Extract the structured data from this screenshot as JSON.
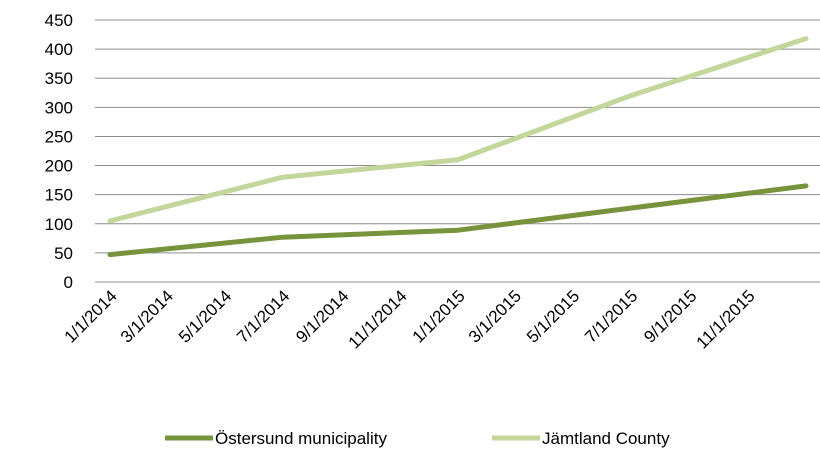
{
  "chart_data": {
    "type": "line",
    "x": [
      "1/1/2014",
      "7/1/2014",
      "1/1/2015",
      "7/1/2015",
      "1/1/2016"
    ],
    "x_tick_labels": [
      "1/1/2014",
      "3/1/2014",
      "5/1/2014",
      "7/1/2014",
      "9/1/2014",
      "11/1/2014",
      "1/1/2015",
      "3/1/2015",
      "5/1/2015",
      "7/1/2015",
      "9/1/2015",
      "11/1/2015"
    ],
    "series": [
      {
        "name": "Östersund municipality",
        "values": [
          47,
          77,
          89,
          127,
          165
        ],
        "color": "#77933c"
      },
      {
        "name": "Jämtland County",
        "values": [
          105,
          180,
          210,
          320,
          418
        ],
        "color": "#c3d69b"
      }
    ],
    "y_ticks": [
      "0",
      "50",
      "100",
      "150",
      "200",
      "250",
      "300",
      "350",
      "400",
      "450"
    ],
    "ylim": [
      0,
      450
    ],
    "grid": true,
    "legend_position": "bottom",
    "title": "",
    "xlabel": "",
    "ylabel": ""
  }
}
